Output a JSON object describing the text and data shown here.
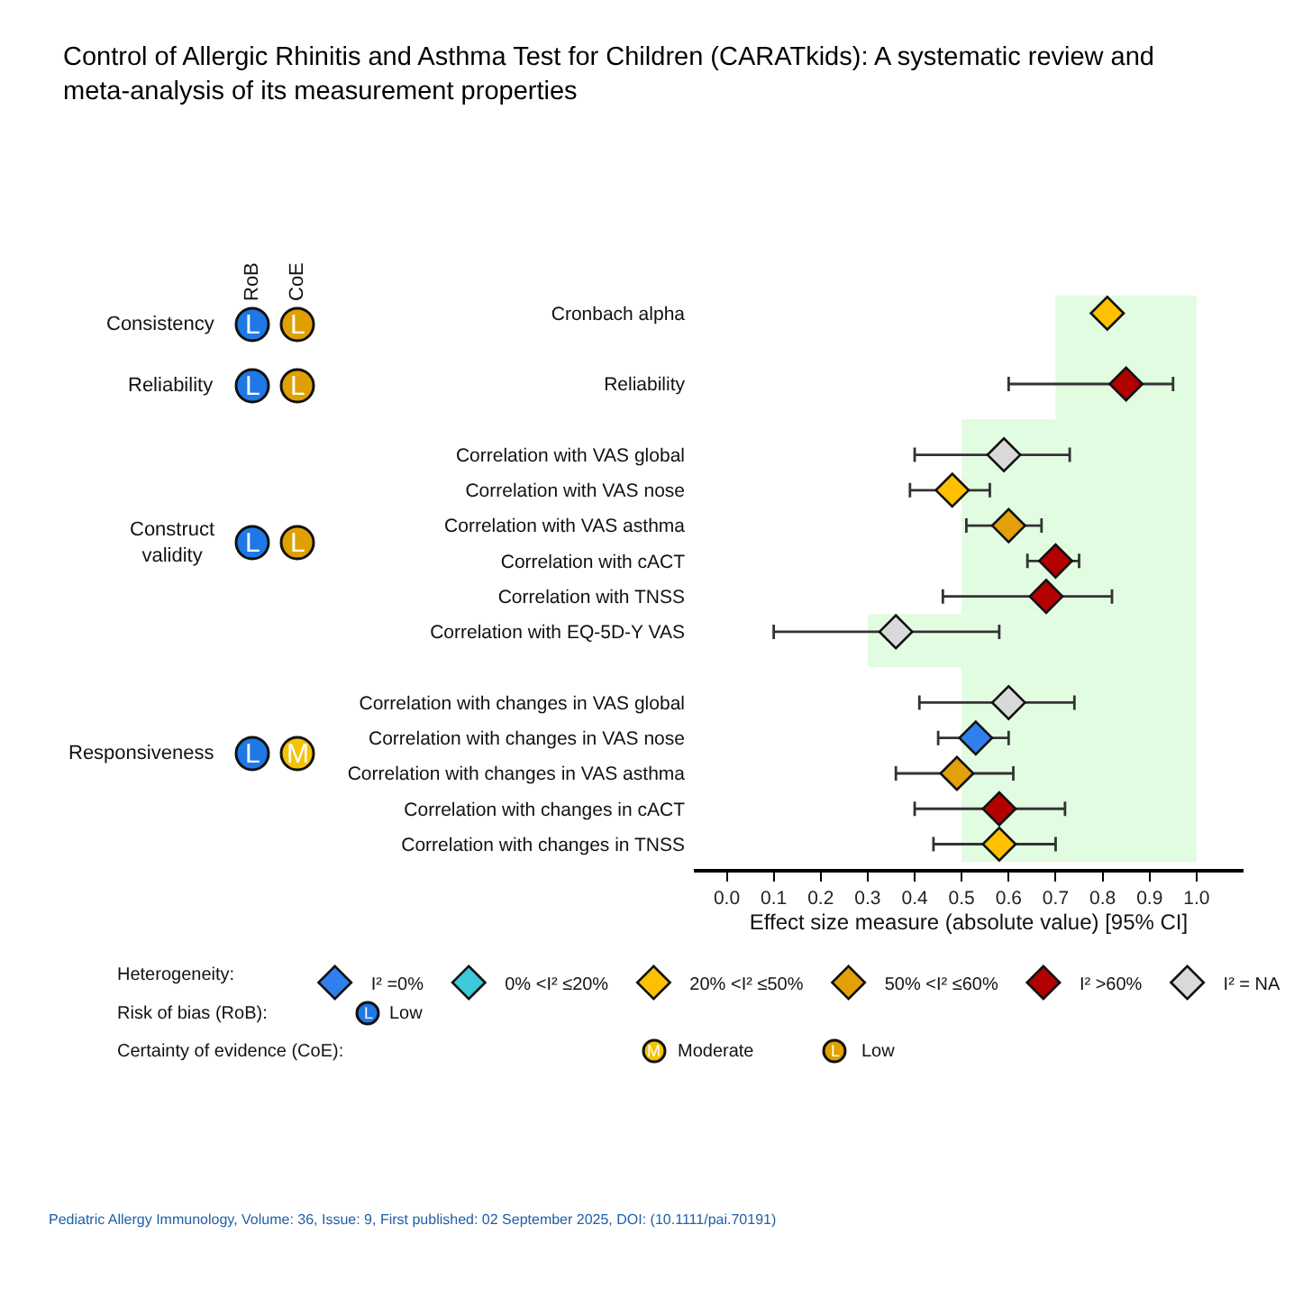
{
  "chart_data": {
    "type": "scatter",
    "orientation": "horizontal",
    "marker": "diamond",
    "title": "Control of Allergic Rhinitis and Asthma Test for Children (CARATkids): A systematic review and meta-analysis of its measurement properties",
    "xlabel": "Effect size measure (absolute value) [95% CI]",
    "legend_title": "Heterogeneity:",
    "legend": "bottom",
    "grid": false,
    "categories": [
      "Cronbach alpha",
      null,
      "Reliability",
      null,
      "Correlation with VAS global",
      "Correlation with VAS nose",
      "Correlation with VAS asthma",
      "Correlation with cACT",
      "Correlation with TNSS",
      "Correlation with EQ-5D-Y VAS",
      null,
      "Correlation with changes in VAS global",
      "Correlation with changes in VAS nose",
      "Correlation with changes in VAS asthma",
      "Correlation with changes in cACT",
      "Correlation with changes in TNSS"
    ],
    "xlim": [
      -0.07,
      1.1
    ],
    "xticks": [
      {
        "value": 0,
        "label": "0.0"
      },
      {
        "value": 0.1,
        "label": "0.1"
      },
      {
        "value": 0.2,
        "label": "0.2"
      },
      {
        "value": 0.3,
        "label": "0.3"
      },
      {
        "value": 0.4,
        "label": "0.4"
      },
      {
        "value": 0.5,
        "label": "0.5"
      },
      {
        "value": 0.6,
        "label": "0.6"
      },
      {
        "value": 0.7,
        "label": "0.7"
      },
      {
        "value": 0.8,
        "label": "0.8"
      },
      {
        "value": 0.9,
        "label": "0.9"
      },
      {
        "value": 1.0,
        "label": "1.0"
      }
    ],
    "series": [
      {
        "name": "I² =0%",
        "color": "#2f80ed",
        "values": [
          null,
          null,
          null,
          null,
          null,
          null,
          null,
          null,
          null,
          null,
          null,
          null,
          0.53,
          null,
          null,
          null
        ],
        "errors": [
          null,
          null,
          null,
          null,
          null,
          null,
          null,
          null,
          null,
          null,
          null,
          null,
          [
            0.45,
            0.6
          ],
          null,
          null,
          null
        ]
      },
      {
        "name": "0% <I² ≤20%",
        "color": "#3ec8d8",
        "values": [
          null,
          null,
          null,
          null,
          null,
          null,
          null,
          null,
          null,
          null,
          null,
          null,
          null,
          null,
          null,
          null
        ]
      },
      {
        "name": "20% <I² ≤50%",
        "color": "#ffc000",
        "values": [
          0.81,
          null,
          null,
          null,
          null,
          0.48,
          null,
          null,
          null,
          null,
          null,
          null,
          null,
          null,
          null,
          0.58
        ],
        "errors": [
          null,
          null,
          null,
          null,
          null,
          [
            0.39,
            0.56
          ],
          null,
          null,
          null,
          null,
          null,
          null,
          null,
          null,
          null,
          [
            0.44,
            0.7
          ]
        ]
      },
      {
        "name": "50% <I² ≤60%",
        "color": "#e3a008",
        "values": [
          null,
          null,
          null,
          null,
          null,
          null,
          0.6,
          null,
          null,
          null,
          null,
          null,
          null,
          0.49,
          null,
          null
        ],
        "errors": [
          null,
          null,
          null,
          null,
          null,
          null,
          [
            0.51,
            0.67
          ],
          null,
          null,
          null,
          null,
          null,
          null,
          [
            0.36,
            0.61
          ],
          null,
          null
        ]
      },
      {
        "name": "I² >60%",
        "color": "#b30000",
        "values": [
          null,
          null,
          0.85,
          null,
          null,
          null,
          null,
          0.7,
          0.68,
          null,
          null,
          null,
          null,
          null,
          0.58,
          null
        ],
        "errors": [
          null,
          null,
          [
            0.6,
            0.95
          ],
          null,
          null,
          null,
          null,
          [
            0.64,
            0.75
          ],
          [
            0.46,
            0.82
          ],
          null,
          null,
          null,
          null,
          null,
          [
            0.4,
            0.72
          ],
          null
        ]
      },
      {
        "name": "I² = NA",
        "color": "#d9d9d9",
        "values": [
          null,
          null,
          null,
          null,
          0.59,
          null,
          null,
          null,
          null,
          0.36,
          null,
          0.6,
          null,
          null,
          null,
          null
        ],
        "errors": [
          null,
          null,
          null,
          null,
          [
            0.4,
            0.73
          ],
          null,
          null,
          null,
          null,
          [
            0.1,
            0.58
          ],
          null,
          [
            0.41,
            0.74
          ],
          null,
          null,
          null,
          null
        ]
      }
    ],
    "bands": [
      {
        "axis": "x",
        "from": 0.7,
        "to": 1.0,
        "color": "#e2fce2"
      },
      {
        "axis": "x",
        "from": 0.7,
        "to": 1.0,
        "color": "#e2fce2"
      },
      {
        "axis": "x",
        "from": 0.5,
        "to": 1.0,
        "color": "#e2fce2"
      },
      {
        "axis": "x",
        "from": 0.5,
        "to": 1.0,
        "color": "#e2fce2"
      },
      {
        "axis": "x",
        "from": 0.5,
        "to": 1.0,
        "color": "#e2fce2"
      },
      {
        "axis": "x",
        "from": 0.5,
        "to": 1.0,
        "color": "#e2fce2"
      },
      {
        "axis": "x",
        "from": 0.5,
        "to": 1.0,
        "color": "#e2fce2"
      },
      {
        "axis": "x",
        "from": 0.3,
        "to": 1.0,
        "color": "#e2fce2"
      },
      {
        "axis": "x",
        "from": 0.5,
        "to": 1.0,
        "color": "#e2fce2"
      },
      {
        "axis": "x",
        "from": 0.5,
        "to": 1.0,
        "color": "#e2fce2"
      },
      {
        "axis": "x",
        "from": 0.5,
        "to": 1.0,
        "color": "#e2fce2"
      },
      {
        "axis": "x",
        "from": 0.5,
        "to": 1.0,
        "color": "#e2fce2"
      },
      {
        "axis": "x",
        "from": 0.5,
        "to": 1.0,
        "color": "#e2fce2"
      }
    ],
    "annotations": [
      "RoB",
      "CoE",
      "Consistency",
      "L",
      "L",
      "Reliability",
      "L",
      "L",
      "Construct\nvalidity",
      "L",
      "L",
      "Responsiveness",
      "L",
      "M",
      "Risk of bias (RoB):",
      "L",
      "Low",
      "Certainty of evidence (CoE):",
      "M",
      "Moderate",
      "L",
      "Low",
      "Pediatric Allergy Immunology, Volume: 36, Issue: 9, First published: 02 September 2025, DOI: (10.1111/pai.70191)"
    ]
  }
}
